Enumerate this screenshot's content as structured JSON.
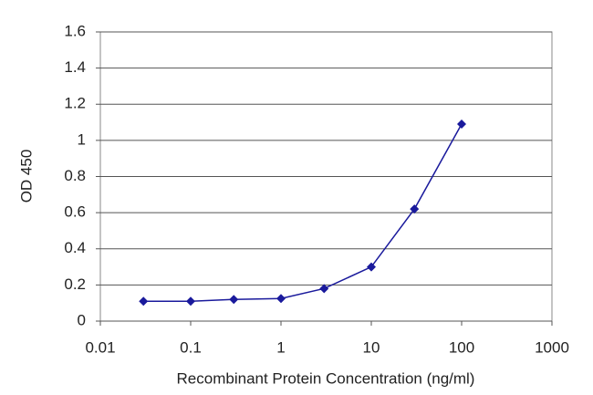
{
  "chart_data": {
    "type": "line",
    "xlabel": "Recombinant Protein Concentration (ng/ml)",
    "ylabel": "OD 450",
    "x": [
      0.03,
      0.1,
      0.3,
      1,
      3,
      10,
      30,
      100
    ],
    "series": [
      {
        "color": "#1a1a9c",
        "values": [
          0.11,
          0.11,
          0.12,
          0.125,
          0.18,
          0.3,
          0.62,
          1.09
        ]
      }
    ],
    "xscale": "log",
    "xlim": [
      0.01,
      1000
    ],
    "xticks": [
      0.01,
      0.1,
      1,
      10,
      100,
      1000
    ],
    "ylim": [
      0,
      1.6
    ],
    "yticks": [
      0,
      0.2,
      0.4,
      0.6,
      0.8,
      1,
      1.2,
      1.4,
      1.6
    ],
    "grid": true
  }
}
